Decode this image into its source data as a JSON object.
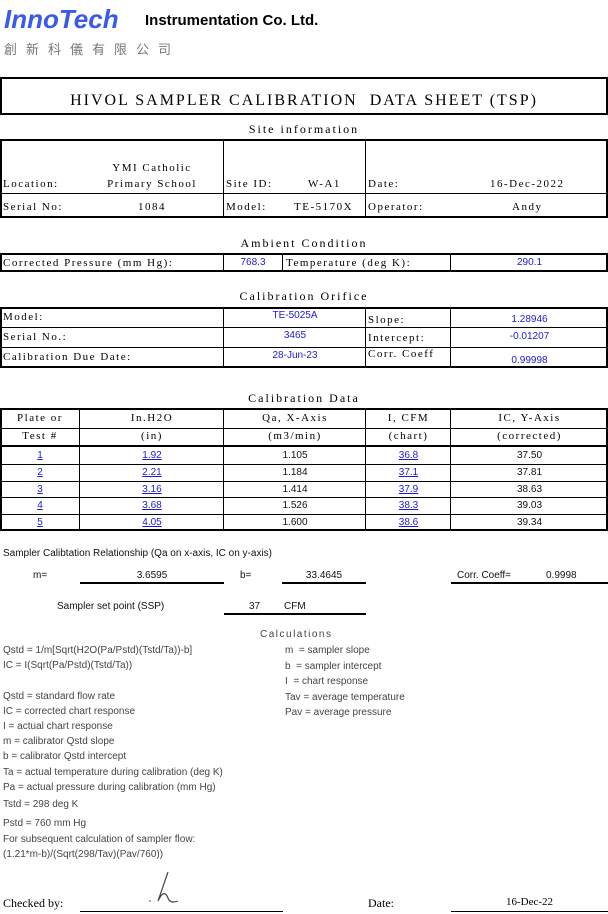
{
  "header": {
    "logo": "InnoTech",
    "company": "Instrumentation Co. Ltd.",
    "company_chinese": "創新科儀有限公司",
    "brand_color": "#3a5be8"
  },
  "title": "HIVOL SAMPLER CALIBRATION  DATA SHEET (TSP)",
  "site": {
    "heading": "Site information",
    "location_label": "Location:",
    "location_line1": "YMI Catholic",
    "location_line2": "Primary School",
    "site_id_label": "Site ID:",
    "site_id": "W-A1",
    "date_label": "Date:",
    "date": "16-Dec-2022",
    "serial_label": "Serial No:",
    "serial": "1084",
    "model_label": "Model:",
    "model": "TE-5170X",
    "operator_label": "Operator:",
    "operator": "Andy"
  },
  "ambient": {
    "heading": "Ambient Condition",
    "pressure_label": "Corrected Pressure (mm Hg):",
    "pressure": "768.3",
    "temp_label": "Temperature (deg K):",
    "temp": "290.1"
  },
  "orifice": {
    "heading": "Calibration Orifice",
    "model_label": "Model:",
    "model": "TE-5025A",
    "serial_label": "Serial No.:",
    "serial": "3465",
    "due_label": "Calibration Due Date:",
    "due": "28-Jun-23",
    "slope_label": "Slope:",
    "slope": "1.28946",
    "intercept_label": "Intercept:",
    "intercept": "-0.01207",
    "corr_label": "Corr. Coeff",
    "corr": "0.99998"
  },
  "calibration": {
    "heading": "Calibration Data",
    "headers": [
      [
        "Plate or",
        "Test #"
      ],
      [
        "In.H2O",
        "(in)"
      ],
      [
        "Qa, X-Axis",
        "(m3/min)"
      ],
      [
        "I, CFM",
        "(chart)"
      ],
      [
        "IC, Y-Axis",
        "(corrected)"
      ]
    ],
    "rows": [
      [
        "1",
        "1.92",
        "1.105",
        "36.8",
        "37.50"
      ],
      [
        "2",
        "2.21",
        "1.184",
        "37.1",
        "37.81"
      ],
      [
        "3",
        "3.16",
        "1.414",
        "37.9",
        "38.63"
      ],
      [
        "4",
        "3.68",
        "1.526",
        "38.3",
        "39.03"
      ],
      [
        "5",
        "4.05",
        "1.600",
        "38.6",
        "39.34"
      ]
    ]
  },
  "relationship": {
    "heading": "Sampler Calibtation Relationship (Qa on x-axis, IC on y-axis)",
    "m_label": "m=",
    "m": "3.6595",
    "b_label": "b=",
    "b": "33.4645",
    "corr_label": "Corr. Coeff=",
    "corr": "0.9998",
    "setpoint_label": "Sampler set point (SSP)",
    "setpoint": "37",
    "setpoint_unit": "CFM"
  },
  "calculations": {
    "heading": "Calculations",
    "left": [
      "Qstd = 1/m[Sqrt(H2O(Pa/Pstd)(Tstd/Ta))-b]",
      "IC = I(Sqrt(Pa/Pstd)(Tstd/Ta))",
      "",
      "Qstd = standard flow rate",
      "IC = corrected chart response",
      "I = actual chart response",
      "m = calibrator Qstd slope",
      "b = calibrator Qstd intercept",
      "Ta = actual temperature during calibration (deg K)",
      "Pa = actual pressure during calibration (mm Hg)",
      "Tstd = 298 deg K",
      "Pstd = 760 mm Hg",
      "For subsequent calculation of sampler flow:",
      "(1.21*m-b)/(Sqrt(298/Tav)(Pav/760))"
    ],
    "right": [
      "m  = sampler slope",
      "b  = sampler intercept",
      "I  = chart response",
      "Tav = average temperature",
      "Pav = average pressure"
    ]
  },
  "footer": {
    "checked_label": "Checked by:",
    "date_label": "Date:",
    "date": "16-Dec-22"
  }
}
